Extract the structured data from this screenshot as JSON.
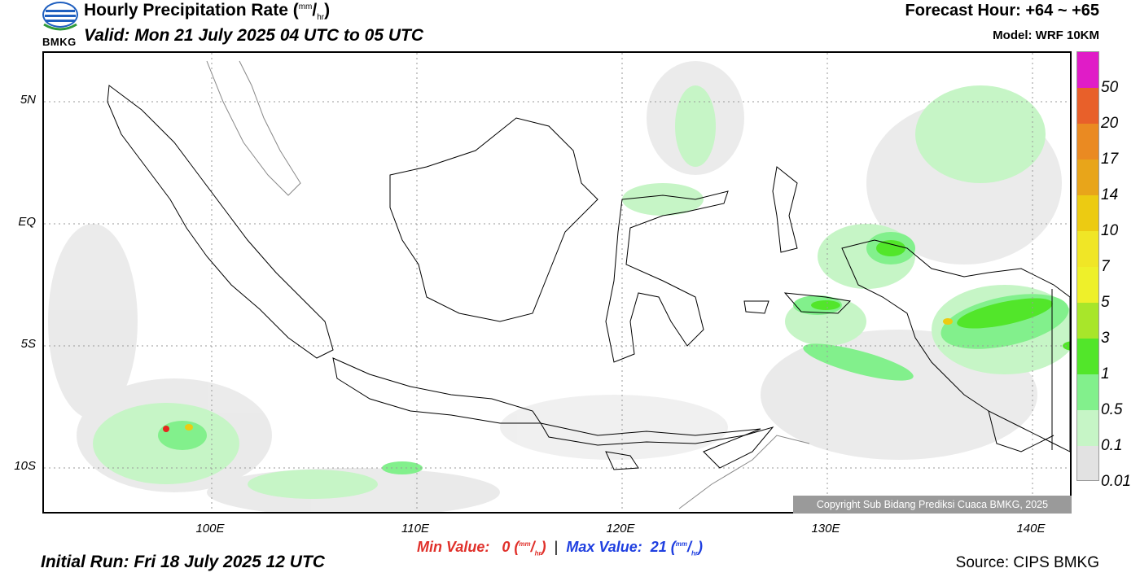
{
  "header": {
    "logo_text": "BMKG",
    "title_main": "Hourly Precipitation Rate (",
    "title_unit_num": "mm",
    "title_unit_sep": "/",
    "title_unit_den": "hr",
    "title_close": ")",
    "valid": "Valid: Mon 21 July 2025 04 UTC to 05 UTC",
    "forecast_hour": "Forecast Hour: +64 ~ +65",
    "model": "Model: WRF 10KM"
  },
  "map": {
    "lat_labels": [
      "5N",
      "EQ",
      "5S",
      "10S"
    ],
    "lon_labels": [
      "100E",
      "110E",
      "120E",
      "130E",
      "140E"
    ],
    "copyright": "Copyright Sub Bidang Prediksi Cuaca BMKG, 2025"
  },
  "legend": {
    "labels": [
      "50",
      "20",
      "17",
      "14",
      "10",
      "7",
      "5",
      "3",
      "1",
      "0.5",
      "0.1",
      "0.01"
    ],
    "colors": [
      "#e01cc7",
      "#e6261e",
      "#e8602a",
      "#ea8a22",
      "#e8a51a",
      "#eccb12",
      "#f0e626",
      "#eef02a",
      "#a8e62a",
      "#52e62a",
      "#82f08c",
      "#c6f5c6",
      "#e2e2e2"
    ]
  },
  "footer": {
    "min_label": "Min Value:",
    "min_value": "0",
    "max_label": "Max Value:",
    "max_value": "21",
    "unit_num": "mm",
    "unit_den": "hr",
    "initial_run": "Initial Run: Fri 18 July 2025 12 UTC",
    "source": "Source: CIPS BMKG"
  }
}
